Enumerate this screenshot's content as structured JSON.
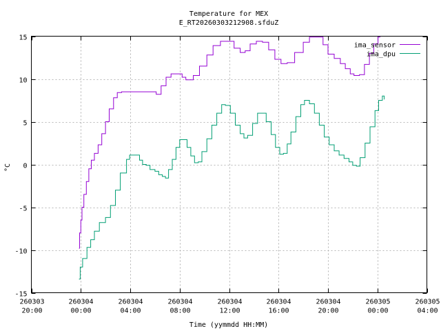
{
  "chart_data": {
    "type": "line",
    "title": "Temperature for MEX",
    "subtitle": "E_RT20260303212908.sfduZ",
    "xlabel": "Time (yymmdd HH:MM)",
    "ylabel": "°C",
    "ylim": [
      -15,
      15
    ],
    "yticks": [
      -15,
      -10,
      -5,
      0,
      5,
      10,
      15
    ],
    "xlim_hours": [
      20,
      52
    ],
    "xticks": [
      {
        "h": 20,
        "date": "260303",
        "time": "20:00"
      },
      {
        "h": 24,
        "date": "260304",
        "time": "00:00"
      },
      {
        "h": 28,
        "date": "260304",
        "time": "04:00"
      },
      {
        "h": 32,
        "date": "260304",
        "time": "08:00"
      },
      {
        "h": 36,
        "date": "260304",
        "time": "12:00"
      },
      {
        "h": 40,
        "date": "260304",
        "time": "16:00"
      },
      {
        "h": 44,
        "date": "260304",
        "time": "20:00"
      },
      {
        "h": 48,
        "date": "260305",
        "time": "00:00"
      },
      {
        "h": 52,
        "date": "260305",
        "time": "04:00"
      }
    ],
    "grid": true,
    "legend_position": "top-right",
    "series": [
      {
        "name": "ima_sensor",
        "color": "#9400d3",
        "points": [
          [
            23.85,
            -9.8
          ],
          [
            23.9,
            -8
          ],
          [
            24.0,
            -6.5
          ],
          [
            24.1,
            -5
          ],
          [
            24.25,
            -3.5
          ],
          [
            24.45,
            -2
          ],
          [
            24.65,
            -0.5
          ],
          [
            24.85,
            0.5
          ],
          [
            25.1,
            1.3
          ],
          [
            25.4,
            2.3
          ],
          [
            25.7,
            3.6
          ],
          [
            26.0,
            5
          ],
          [
            26.3,
            6.5
          ],
          [
            26.65,
            7.8
          ],
          [
            26.95,
            8.4
          ],
          [
            27.3,
            8.5
          ],
          [
            28.0,
            8.5
          ],
          [
            29.0,
            8.5
          ],
          [
            29.9,
            8.5
          ],
          [
            30.1,
            8.2
          ],
          [
            30.5,
            9.2
          ],
          [
            30.9,
            10.2
          ],
          [
            31.3,
            10.6
          ],
          [
            31.85,
            10.6
          ],
          [
            32.2,
            10.2
          ],
          [
            32.5,
            9.9
          ],
          [
            33.1,
            10.4
          ],
          [
            33.6,
            11.5
          ],
          [
            34.2,
            12.8
          ],
          [
            34.7,
            13.9
          ],
          [
            35.3,
            14.4
          ],
          [
            35.85,
            14.4
          ],
          [
            36.4,
            13.6
          ],
          [
            36.9,
            13.1
          ],
          [
            37.3,
            13.3
          ],
          [
            37.7,
            14.1
          ],
          [
            38.2,
            14.4
          ],
          [
            38.7,
            14.3
          ],
          [
            39.2,
            13.4
          ],
          [
            39.7,
            12.3
          ],
          [
            40.2,
            11.8
          ],
          [
            40.7,
            11.9
          ],
          [
            41.3,
            13.1
          ],
          [
            42.0,
            14.3
          ],
          [
            42.5,
            14.9
          ],
          [
            43.05,
            14.9
          ],
          [
            43.6,
            14.0
          ],
          [
            44.0,
            12.9
          ],
          [
            44.5,
            12.4
          ],
          [
            45.0,
            11.8
          ],
          [
            45.4,
            11.2
          ],
          [
            45.8,
            10.6
          ],
          [
            46.1,
            10.4
          ],
          [
            46.55,
            10.5
          ],
          [
            46.95,
            11.7
          ],
          [
            47.35,
            13.0
          ],
          [
            47.7,
            14.1
          ],
          [
            48.05,
            14.9
          ],
          [
            48.2,
            15
          ]
        ]
      },
      {
        "name": "ima_dpu",
        "color": "#009e73",
        "points": [
          [
            23.85,
            -13.4
          ],
          [
            23.95,
            -12
          ],
          [
            24.15,
            -11
          ],
          [
            24.5,
            -9.7
          ],
          [
            24.8,
            -8.8
          ],
          [
            25.1,
            -7.8
          ],
          [
            25.5,
            -6.8
          ],
          [
            26.0,
            -6.2
          ],
          [
            26.4,
            -4.8
          ],
          [
            26.8,
            -3
          ],
          [
            27.2,
            -1
          ],
          [
            27.7,
            0.6
          ],
          [
            27.95,
            1.1
          ],
          [
            28.4,
            1.1
          ],
          [
            28.75,
            0.5
          ],
          [
            29.0,
            0.0
          ],
          [
            29.3,
            -0.1
          ],
          [
            29.6,
            -0.6
          ],
          [
            30.0,
            -0.8
          ],
          [
            30.3,
            -1.2
          ],
          [
            30.6,
            -1.4
          ],
          [
            30.85,
            -1.6
          ],
          [
            31.1,
            -0.6
          ],
          [
            31.4,
            0.6
          ],
          [
            31.7,
            2
          ],
          [
            32.0,
            2.9
          ],
          [
            32.35,
            2.9
          ],
          [
            32.6,
            2
          ],
          [
            32.9,
            1.0
          ],
          [
            33.2,
            0.2
          ],
          [
            33.5,
            0.3
          ],
          [
            33.8,
            1.5
          ],
          [
            34.2,
            3
          ],
          [
            34.6,
            4.6
          ],
          [
            35.0,
            6
          ],
          [
            35.4,
            7.0
          ],
          [
            35.7,
            6.9
          ],
          [
            36.1,
            6
          ],
          [
            36.5,
            4.6
          ],
          [
            36.9,
            3.6
          ],
          [
            37.2,
            3.1
          ],
          [
            37.5,
            3.4
          ],
          [
            37.9,
            4.8
          ],
          [
            38.3,
            6.0
          ],
          [
            38.6,
            6.0
          ],
          [
            39.0,
            5
          ],
          [
            39.4,
            3.5
          ],
          [
            39.75,
            2
          ],
          [
            40.1,
            1.2
          ],
          [
            40.4,
            1.3
          ],
          [
            40.7,
            2.4
          ],
          [
            41.0,
            3.8
          ],
          [
            41.4,
            5.6
          ],
          [
            41.8,
            7.0
          ],
          [
            42.1,
            7.5
          ],
          [
            42.5,
            7.1
          ],
          [
            42.9,
            6
          ],
          [
            43.3,
            4.6
          ],
          [
            43.7,
            3.2
          ],
          [
            44.1,
            2.3
          ],
          [
            44.5,
            1.6
          ],
          [
            44.9,
            1.1
          ],
          [
            45.3,
            0.7
          ],
          [
            45.7,
            0.3
          ],
          [
            46.0,
            -0.1
          ],
          [
            46.3,
            -0.2
          ],
          [
            46.6,
            0.8
          ],
          [
            47.0,
            2.5
          ],
          [
            47.4,
            4.4
          ],
          [
            47.8,
            6.3
          ],
          [
            48.1,
            7.5
          ],
          [
            48.4,
            8.0
          ],
          [
            48.55,
            7.6
          ]
        ]
      }
    ]
  }
}
